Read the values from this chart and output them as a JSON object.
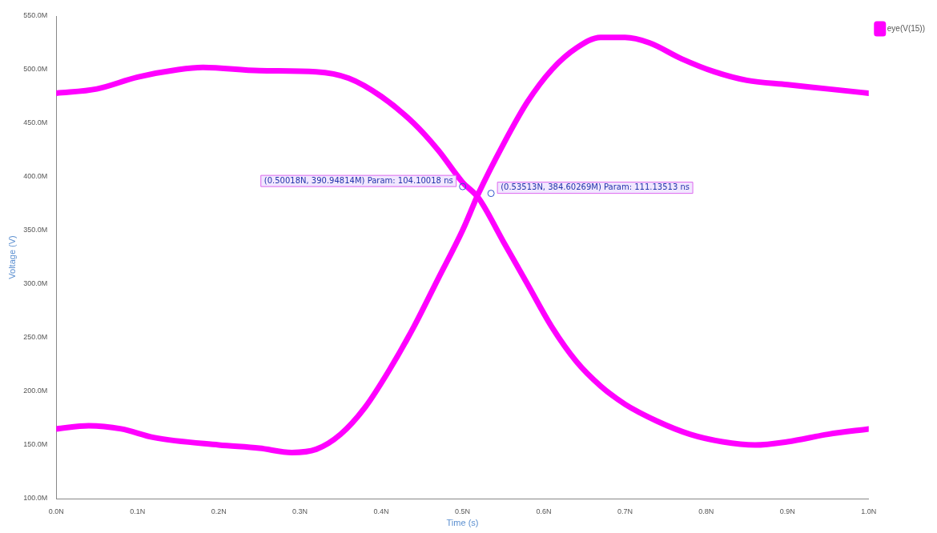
{
  "chart_data": {
    "type": "line",
    "xlabel": "Time (s)",
    "ylabel": "Voltage (V)",
    "xlim": [
      0,
      1.0
    ],
    "ylim": [
      100,
      550
    ],
    "xticks": [
      {
        "value": 0,
        "label": "0.0N"
      },
      {
        "value": 0.1,
        "label": "0.1N"
      },
      {
        "value": 0.2,
        "label": "0.2N"
      },
      {
        "value": 0.3,
        "label": "0.3N"
      },
      {
        "value": 0.4,
        "label": "0.4N"
      },
      {
        "value": 0.5,
        "label": "0.5N"
      },
      {
        "value": 0.6,
        "label": "0.6N"
      },
      {
        "value": 0.7,
        "label": "0.7N"
      },
      {
        "value": 0.8,
        "label": "0.8N"
      },
      {
        "value": 0.9,
        "label": "0.9N"
      },
      {
        "value": 1.0,
        "label": "1.0N"
      }
    ],
    "yticks": [
      {
        "value": 100,
        "label": "100.0M"
      },
      {
        "value": 150,
        "label": "150.0M"
      },
      {
        "value": 200,
        "label": "200.0M"
      },
      {
        "value": 250,
        "label": "250.0M"
      },
      {
        "value": 300,
        "label": "300.0M"
      },
      {
        "value": 350,
        "label": "350.0M"
      },
      {
        "value": 400,
        "label": "400.0M"
      },
      {
        "value": 450,
        "label": "450.0M"
      },
      {
        "value": 500,
        "label": "500.0M"
      },
      {
        "value": 550,
        "label": "550.0M"
      }
    ],
    "grid": false,
    "legend": "top right",
    "marker": "none",
    "line_style": "solid",
    "series": [
      {
        "name": "eye(V(15))",
        "color": "#ff00ff",
        "x": [
          0,
          0.05,
          0.1,
          0.15,
          0.18,
          0.25,
          0.32,
          0.36,
          0.4,
          0.44,
          0.47,
          0.5,
          0.52,
          0.55,
          0.58,
          0.61,
          0.64,
          0.67,
          0.7,
          0.74,
          0.78,
          0.82,
          0.86,
          0.9,
          0.95,
          1.0
        ],
        "values": [
          478,
          482,
          493,
          500,
          502,
          499,
          498,
          492,
          475,
          450,
          425,
          395,
          380,
          340,
          300,
          260,
          228,
          205,
          188,
          172,
          160,
          153,
          150,
          153,
          160,
          165
        ]
      },
      {
        "color": "#ff00ff",
        "x": [
          0,
          0.04,
          0.08,
          0.12,
          0.2,
          0.25,
          0.29,
          0.32,
          0.35,
          0.38,
          0.41,
          0.44,
          0.47,
          0.5,
          0.52,
          0.55,
          0.58,
          0.61,
          0.64,
          0.67,
          0.7,
          0.73,
          0.77,
          0.81,
          0.85,
          0.9,
          0.95,
          1.0
        ],
        "values": [
          165,
          168,
          165,
          157,
          150,
          147,
          143,
          146,
          160,
          185,
          220,
          260,
          305,
          350,
          385,
          430,
          470,
          500,
          520,
          530,
          530,
          525,
          510,
          498,
          490,
          486,
          482,
          478
        ]
      }
    ],
    "annotations": [
      {
        "text": "(0.50018N, 390.94814M) Param: 104.10018 ns",
        "x": 0.50018,
        "y": 390.94814
      },
      {
        "text": "(0.53513N, 384.60269M) Param: 111.13513 ns",
        "x": 0.53513,
        "y": 384.60269
      }
    ]
  }
}
